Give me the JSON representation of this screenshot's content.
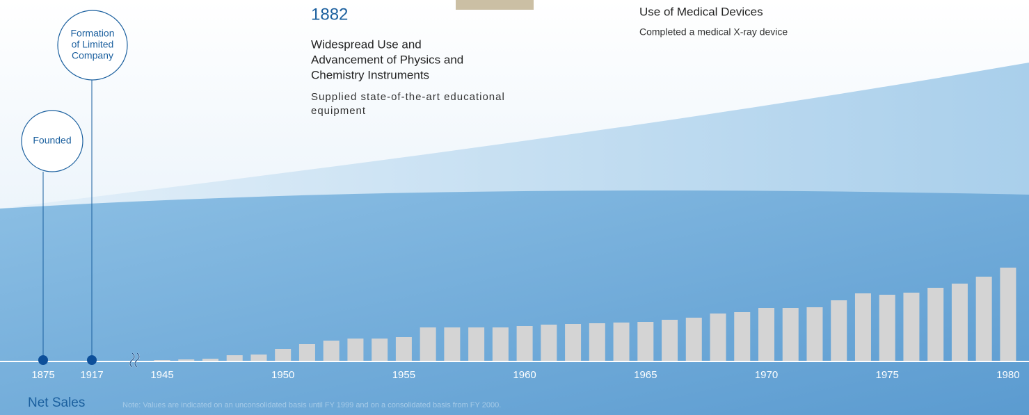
{
  "chart_data": {
    "type": "bar",
    "title": "Net Sales",
    "note": "Note: Values are indicated on an unconsolidated basis until FY 1999 and on a consolidated basis from FY 2000.",
    "categories": [
      "1945",
      null,
      null,
      null,
      null,
      "1950",
      null,
      null,
      null,
      null,
      "1955",
      null,
      null,
      null,
      null,
      "1960",
      null,
      null,
      null,
      null,
      "1965",
      null,
      null,
      null,
      null,
      "1970",
      null,
      null,
      null,
      null,
      "1975",
      null,
      null,
      null,
      null,
      "1980"
    ],
    "values": [
      1,
      2,
      3,
      8,
      9,
      17,
      24,
      29,
      32,
      32,
      34,
      48,
      48,
      48,
      48,
      50,
      52,
      53,
      54,
      55,
      56,
      59,
      62,
      68,
      70,
      76,
      76,
      77,
      87,
      97,
      95,
      98,
      105,
      111,
      121,
      134
    ],
    "color": "#d4d4d4",
    "milestones": [
      {
        "year": "1875",
        "label_lines": [
          "Founded"
        ]
      },
      {
        "year": "1917",
        "label_lines": [
          "Formation",
          "of Limited",
          "Company"
        ]
      }
    ]
  },
  "events": [
    {
      "year": "1882",
      "title_lines": [
        "Widespread Use and",
        "Advancement of Physics and",
        "Chemistry Instruments"
      ],
      "desc_lines": [
        "Supplied state-of-the-art educational",
        "equipment"
      ]
    },
    {
      "title_lines": [
        "Use of Medical Devices"
      ],
      "desc_lines": [
        "Completed a medical X-ray device"
      ]
    }
  ]
}
